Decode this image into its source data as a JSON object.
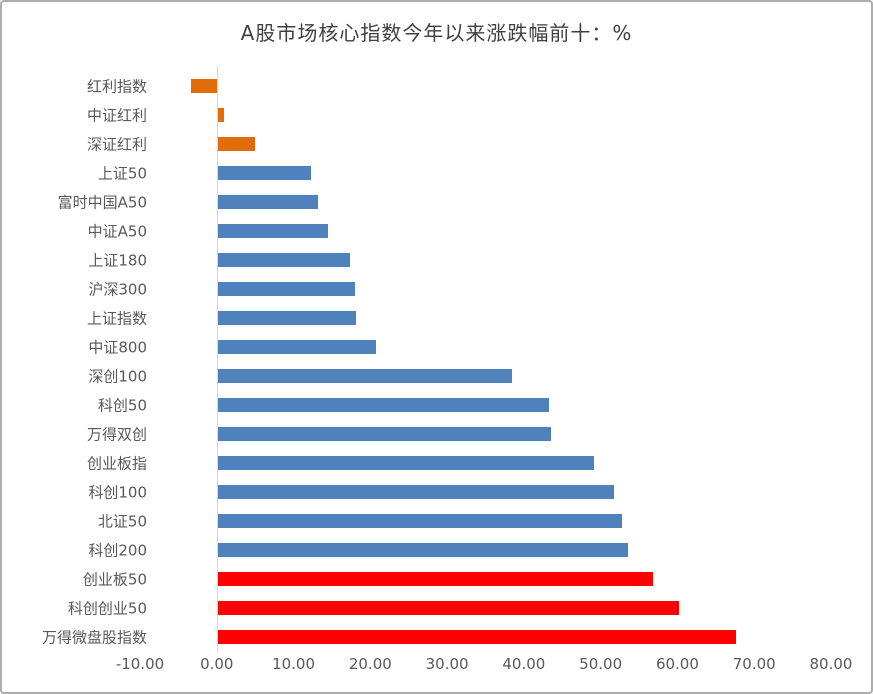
{
  "window": {
    "background": "#ffffff",
    "border_color": "#aeaeae"
  },
  "chart_data": {
    "type": "bar",
    "orientation": "horizontal",
    "title": "A股市场核心指数今年以来涨跌幅前十：%",
    "categories": [
      "红利指数",
      "中证红利",
      "深证红利",
      "上证50",
      "富时中国A50",
      "中证A50",
      "上证180",
      "沪深300",
      "上证指数",
      "中证800",
      "深创100",
      "科创50",
      "万得双创",
      "创业板指",
      "科创100",
      "北证50",
      "科创200",
      "创业板50",
      "科创创业50",
      "万得微盘股指数"
    ],
    "values": [
      -3.3,
      0.9,
      5.0,
      12.3,
      13.2,
      14.5,
      17.3,
      18.0,
      18.1,
      20.7,
      38.5,
      43.3,
      43.5,
      49.1,
      51.8,
      52.8,
      53.5,
      56.8,
      60.2,
      67.6
    ],
    "bar_colors": [
      "#E26B0A",
      "#E26B0A",
      "#E26B0A",
      "#4F81BD",
      "#4F81BD",
      "#4F81BD",
      "#4F81BD",
      "#4F81BD",
      "#4F81BD",
      "#4F81BD",
      "#4F81BD",
      "#4F81BD",
      "#4F81BD",
      "#4F81BD",
      "#4F81BD",
      "#4F81BD",
      "#4F81BD",
      "#FF0000",
      "#FF0000",
      "#FF0000"
    ],
    "color_roles": {
      "dividend_indices": "#E26B0A",
      "broad_market_indices": "#4F81BD",
      "growth_small_cap_indices": "#FF0000"
    },
    "xlim": [
      -10,
      80
    ],
    "x_ticks": [
      {
        "value": -10,
        "label": "-10.00"
      },
      {
        "value": 0,
        "label": "0.00"
      },
      {
        "value": 10,
        "label": "10.00"
      },
      {
        "value": 20,
        "label": "20.00"
      },
      {
        "value": 30,
        "label": "30.00"
      },
      {
        "value": 40,
        "label": "40.00"
      },
      {
        "value": 50,
        "label": "50.00"
      },
      {
        "value": 60,
        "label": "60.00"
      },
      {
        "value": 70,
        "label": "70.00"
      },
      {
        "value": 80,
        "label": "80.00"
      }
    ],
    "grid": false,
    "legend_position": "none",
    "axis_line_color": "#D9D9D9",
    "tick_text_color": "#595959",
    "label_text_color": "#595959",
    "title_color": "#404040"
  }
}
